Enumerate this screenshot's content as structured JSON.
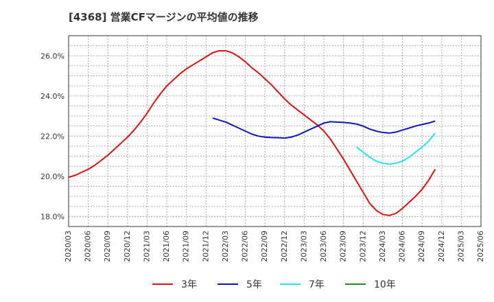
{
  "chart_data": {
    "type": "line",
    "title": "[4368]  営業CFマージンの平均値の推移",
    "xlabel": "",
    "ylabel": "",
    "ylim": [
      17.5,
      27.0
    ],
    "yticks": [
      18.0,
      20.0,
      22.0,
      24.0,
      26.0
    ],
    "ytick_labels": [
      "18.0%",
      "20.0%",
      "22.0%",
      "24.0%",
      "26.0%"
    ],
    "x_tick_labels": [
      "2020/03",
      "2020/06",
      "2020/09",
      "2020/12",
      "2021/03",
      "2021/06",
      "2021/09",
      "2021/12",
      "2022/03",
      "2022/06",
      "2022/09",
      "2022/12",
      "2023/03",
      "2023/06",
      "2023/09",
      "2023/12",
      "2024/03",
      "2024/06",
      "2024/09",
      "2024/12",
      "2025/03",
      "2025/06"
    ],
    "grid": true,
    "legend_position": "bottom",
    "series": [
      {
        "name": "3年",
        "color": "#dd1111",
        "values": [
          19.95,
          20.05,
          20.2,
          20.35,
          20.55,
          20.8,
          21.05,
          21.35,
          21.65,
          21.95,
          22.3,
          22.7,
          23.15,
          23.65,
          24.1,
          24.5,
          24.8,
          25.1,
          25.35,
          25.55,
          25.75,
          25.95,
          26.15,
          26.25,
          26.25,
          26.15,
          25.95,
          25.7,
          25.4,
          25.15,
          24.85,
          24.55,
          24.2,
          23.85,
          23.55,
          23.3,
          23.05,
          22.8,
          22.55,
          22.25,
          21.85,
          21.35,
          20.85,
          20.3,
          19.75,
          19.2,
          18.65,
          18.3,
          18.1,
          18.05,
          18.15,
          18.4,
          18.7,
          19.0,
          19.35,
          19.8,
          20.35
        ],
        "start_index": 0
      },
      {
        "name": "5年",
        "color": "#1111bb",
        "values": [
          22.9,
          22.8,
          22.7,
          22.55,
          22.4,
          22.25,
          22.1,
          22.0,
          21.95,
          21.93,
          21.92,
          21.9,
          21.95,
          22.05,
          22.2,
          22.35,
          22.5,
          22.65,
          22.72,
          22.7,
          22.68,
          22.65,
          22.6,
          22.5,
          22.35,
          22.25,
          22.18,
          22.15,
          22.2,
          22.3,
          22.4,
          22.5,
          22.58,
          22.65,
          22.75
        ],
        "start_index": 22
      },
      {
        "name": "7年",
        "color": "#22e5ee",
        "values": [
          21.45,
          21.2,
          20.95,
          20.75,
          20.65,
          20.6,
          20.65,
          20.75,
          20.95,
          21.2,
          21.45,
          21.75,
          22.15
        ],
        "start_index": 44
      },
      {
        "name": "10年",
        "color": "#228822",
        "values": [],
        "start_index": 0
      }
    ]
  }
}
